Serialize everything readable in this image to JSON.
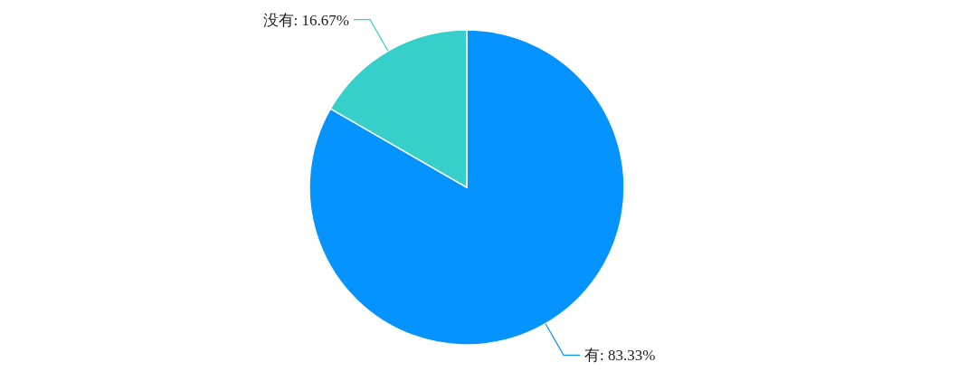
{
  "chart_data": {
    "type": "pie",
    "categories": [
      "有",
      "没有"
    ],
    "values": [
      83.33,
      16.67
    ],
    "colors": [
      "#0593ff",
      "#36cfc9"
    ],
    "value_labels": [
      "83.33%",
      "16.67%"
    ],
    "legend": false
  }
}
